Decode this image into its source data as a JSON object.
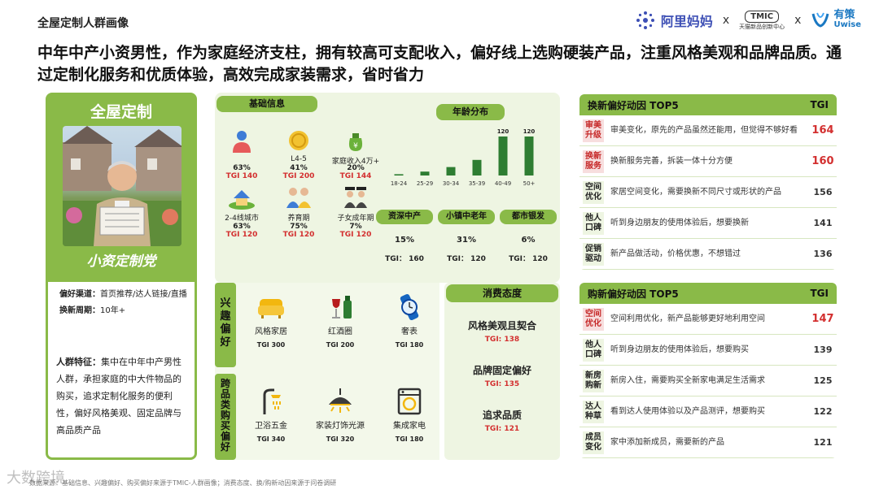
{
  "header": {
    "title": "全屋定制人群画像",
    "logos": {
      "alimama": "阿里妈妈",
      "tmic_badge": "TMIC",
      "tmic_sub": "天猫新品创新中心",
      "youce_cn": "有策",
      "youce_en": "Uwise",
      "sep": "x"
    }
  },
  "headline": "中年中产小资男性，作为家庭经济支柱，拥有较高可支配收入，偏好线上选购硬装产品，注重风格美观和品牌品质。通过定制化服务和优质体验，高效完成家装需求，省时省力",
  "left_card": {
    "title": "全屋定制",
    "persona_name": "小资定制党",
    "channel_label": "偏好渠道：",
    "channel_value": "首页推荐/达人链接/直播",
    "cycle_label": "换新周期：",
    "cycle_value": "10年+",
    "feature_label": "人群特征：",
    "feature_text": "集中在中年中产男性人群，承担家庭的中大件物品的购买，追求定制化服务的便利性，偏好风格美观、固定品牌与高品质产品"
  },
  "basic_info": {
    "title": "基础信息",
    "items": [
      {
        "label": "",
        "pct": "63%",
        "tgi": "TGI 140",
        "icon": "male-user-icon"
      },
      {
        "label": "L4-5",
        "pct": "41%",
        "tgi": "TGI 200",
        "icon": "coin-icon"
      },
      {
        "label": "家庭收入4万+",
        "pct": "20%",
        "tgi": "TGI 144",
        "icon": "money-bag-icon"
      },
      {
        "label": "2-4线城市",
        "pct": "63%",
        "tgi": "TGI 120",
        "icon": "house-icon"
      },
      {
        "label": "养育期",
        "pct": "75%",
        "tgi": "TGI 120",
        "icon": "family-icon"
      },
      {
        "label": "子女成年期",
        "pct": "7%",
        "tgi": "TGI 120",
        "icon": "graduates-icon"
      }
    ]
  },
  "age": {
    "title": "年龄分布",
    "categories": [
      "18-24",
      "25-29",
      "30-34",
      "35-39",
      "40-49",
      "50+"
    ],
    "values": [
      4,
      12,
      26,
      48,
      120,
      120
    ],
    "data_labels": [
      "",
      "",
      "",
      "",
      "120",
      "120"
    ]
  },
  "region": {
    "items": [
      {
        "label": "资深中产",
        "pct": "15%",
        "tgi_label": "TGI：",
        "tgi": "160"
      },
      {
        "label": "小镇中老年",
        "pct": "31%",
        "tgi_label": "TGI：",
        "tgi": "120"
      },
      {
        "label": "都市银发",
        "pct": "6%",
        "tgi_label": "TGI：",
        "tgi": "120"
      }
    ]
  },
  "interest": {
    "tab": "兴趣偏好",
    "items": [
      {
        "label": "风格家居",
        "tgi": "TGI 300",
        "icon": "sofa-icon"
      },
      {
        "label": "红酒圈",
        "tgi": "TGI 200",
        "icon": "wine-icon"
      },
      {
        "label": "奢表",
        "tgi": "TGI 180",
        "icon": "watch-icon"
      }
    ]
  },
  "cross": {
    "tab": "跨品类购买偏好",
    "items": [
      {
        "label": "卫浴五金",
        "tgi": "TGI 340",
        "icon": "shower-icon"
      },
      {
        "label": "家装灯饰光源",
        "tgi": "TGI 320",
        "icon": "lamp-icon"
      },
      {
        "label": "集成家电",
        "tgi": "TGI 180",
        "icon": "washer-icon"
      }
    ]
  },
  "attitude": {
    "title": "消费态度",
    "items": [
      {
        "label": "风格美观且契合",
        "tgi": "TGI: 138"
      },
      {
        "label": "品牌固定偏好",
        "tgi": "TGI: 135"
      },
      {
        "label": "追求品质",
        "tgi": "TGI: 121"
      }
    ]
  },
  "renew_table": {
    "title": "换新偏好动因 TOP5",
    "tgi_header": "TGI",
    "rows": [
      {
        "tag": "审美升级",
        "desc": "审美变化，原先的产品虽然还能用，但觉得不够好看",
        "tgi": "164",
        "hl": true
      },
      {
        "tag": "换新服务",
        "desc": "换新服务完善，拆装一体十分方便",
        "tgi": "160",
        "hl": true
      },
      {
        "tag": "空间优化",
        "desc": "家居空间变化，需要换新不同尺寸或形状的产品",
        "tgi": "156",
        "hl": false
      },
      {
        "tag": "他人口碑",
        "desc": "听到身边朋友的使用体验后，想要换新",
        "tgi": "141",
        "hl": false
      },
      {
        "tag": "促销驱动",
        "desc": "新产品做活动，价格优惠，不想错过",
        "tgi": "136",
        "hl": false
      }
    ]
  },
  "buy_table": {
    "title": "购新偏好动因 TOP5",
    "tgi_header": "TGI",
    "rows": [
      {
        "tag": "空间优化",
        "desc": "空间利用优化，新产品能够更好地利用空间",
        "tgi": "147",
        "hl": true
      },
      {
        "tag": "他人口碑",
        "desc": "听到身边朋友的使用体验后，想要购买",
        "tgi": "139",
        "hl": false
      },
      {
        "tag": "新房购新",
        "desc": "新房入住，需要购买全新家电满足生活需求",
        "tgi": "125",
        "hl": false
      },
      {
        "tag": "达人种草",
        "desc": "看到达人使用体验以及产品测评，想要购买",
        "tgi": "122",
        "hl": false
      },
      {
        "tag": "成员变化",
        "desc": "家中添加新成员，需要新的产品",
        "tgi": "121",
        "hl": false
      }
    ]
  },
  "footer": "数据来源：基础信息、兴趣偏好、购买偏好来源于TMIC-人群画像；消费态度、换/购新动因来源于问卷调研",
  "watermark": "大数跨境",
  "colors": {
    "accent_green": "#8aba48",
    "bar_green": "#2e7d32",
    "tgi_red": "#d32f2f"
  }
}
